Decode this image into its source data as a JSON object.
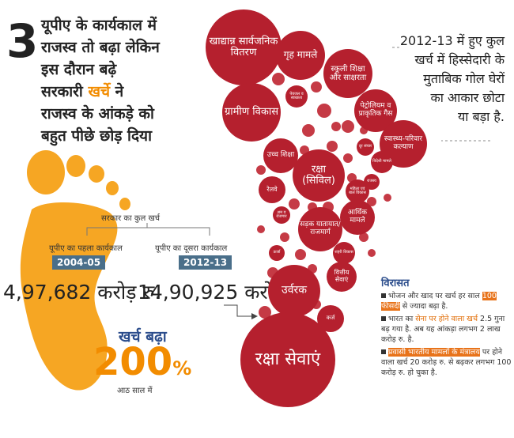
{
  "headline": {
    "number": "3",
    "lines": [
      "यूपीए के कार्यकाल में",
      "राजस्व तो बढ़ा लेकिन",
      "इस दौरान बढ़े"
    ],
    "line4": {
      "before": "सरकारी ",
      "highlight": "खर्चे",
      "after": " ने"
    },
    "lines_end": [
      "राजस्व के आंकड़े को",
      "बहुत पीछे छोड़ दिया"
    ]
  },
  "spending": {
    "label": "सरकार का कुल खर्च",
    "first_term": {
      "label": "यूपीए का पहला कार्यकाल",
      "year": "2004-05",
      "amount": "4,97,682",
      "unit": "करोड़ रु."
    },
    "second_term": {
      "label": "यूपीए का दूसरा कार्यकाल",
      "year": "2012-13",
      "amount": "14,90,925",
      "unit": "करोड़ रु."
    },
    "increase_label": "खर्च बढ़ा",
    "increase": {
      "value": "200",
      "unit": "%"
    },
    "period": "आठ साल में"
  },
  "note": {
    "lines": [
      "2012-13 में हुए कुल",
      "खर्च में हिस्सेदारी के",
      "मुताबिक गोल घेरों",
      "का आकार छोटा",
      "या बड़ा है."
    ]
  },
  "bubbles": [
    {
      "label": "खाद्यान्न सार्वजनिक वितरण"
    },
    {
      "label": "गृह मामले"
    },
    {
      "label": "स्कूली शिक्षा और साक्षरता"
    },
    {
      "label": "ग्रामीण विकास"
    },
    {
      "label": "पेयजल व स्वच्छता"
    },
    {
      "label": "पेट्रोलियम व प्राकृतिक गैस"
    },
    {
      "label": "स्वास्थ्य-परिवार कल्याण"
    },
    {
      "label": "उच्च शिक्षा"
    },
    {
      "label": "रक्षा (सिविल)"
    },
    {
      "label": "रेलवे"
    },
    {
      "label": "आर्थिक मामले"
    },
    {
      "label": "सड़क यातायात/ राजमार्ग"
    },
    {
      "label": "महिला एवं बाल विकास"
    },
    {
      "label": "विदेशी मामले"
    },
    {
      "label": "दूर संचार"
    },
    {
      "label": "ऊर्जा"
    },
    {
      "label": "शहरी विकास"
    },
    {
      "label": "वित्तीय सेवाएं"
    },
    {
      "label": "उर्वरक"
    },
    {
      "label": "कर्ज"
    },
    {
      "label": "रक्षा सेवाएं"
    },
    {
      "label": "राजस्व"
    },
    {
      "label": "श्रम व रोजगार"
    }
  ],
  "legacy": {
    "title": "विरासत",
    "items": [
      {
        "before": "भोजन और खाद पर खर्च हर साल ",
        "highlight": "100 फीसदी",
        "after": " से ज्यादा बढ़ा है."
      },
      {
        "before": "भारत का ",
        "highlight": "सेना पर होने वाला खर्च",
        "after": " 2.5 गुना बढ़ गया है. अब यह आंकड़ा लगभग 2 लाख करोड़ रु. है."
      },
      {
        "before": "",
        "highlight": "प्रवासी भारतीय मामलों के मंत्रालय",
        "after": " पर होने वाला खर्च 20 करोड़ रु. से बढ़कर लगभग 100 करोड़ रु. हो चुका है."
      }
    ]
  }
}
